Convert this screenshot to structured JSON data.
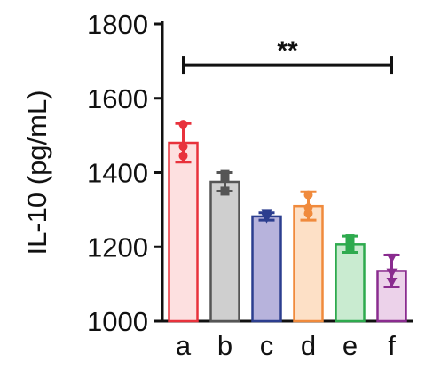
{
  "chart_data": {
    "type": "bar",
    "ylabel": "IL-10 (pg/mL)",
    "xlabel": "",
    "title": "",
    "ylim": [
      1000,
      1800
    ],
    "yticks": [
      1000,
      1200,
      1400,
      1600,
      1800
    ],
    "categories": [
      "a",
      "b",
      "c",
      "d",
      "e",
      "f"
    ],
    "series": [
      {
        "values": [
          1480,
          1375,
          1282,
          1310,
          1207,
          1135
        ],
        "errors": [
          52,
          25,
          10,
          38,
          22,
          43
        ],
        "points": [
          [
            1530,
            1445,
            1470
          ],
          [
            1395,
            1350,
            1385
          ],
          [
            1288,
            1278,
            1283
          ],
          [
            1340,
            1290,
            1305
          ],
          [
            1222,
            1195,
            1210
          ],
          [
            1170,
            1105,
            1130
          ]
        ],
        "colors": [
          "#e8323c",
          "#555555",
          "#2c3e8f",
          "#f08a3c",
          "#2eaa4e",
          "#8a2c8f"
        ],
        "fills": [
          "#fde0e0",
          "#cfcfcf",
          "#b7b3dc",
          "#fde0c6",
          "#c9ebd0",
          "#ecd2ea"
        ]
      }
    ],
    "annotation": {
      "text": "**",
      "from_category": "a",
      "to_category": "f",
      "y": 1690
    },
    "grid": false,
    "legend": "none"
  }
}
